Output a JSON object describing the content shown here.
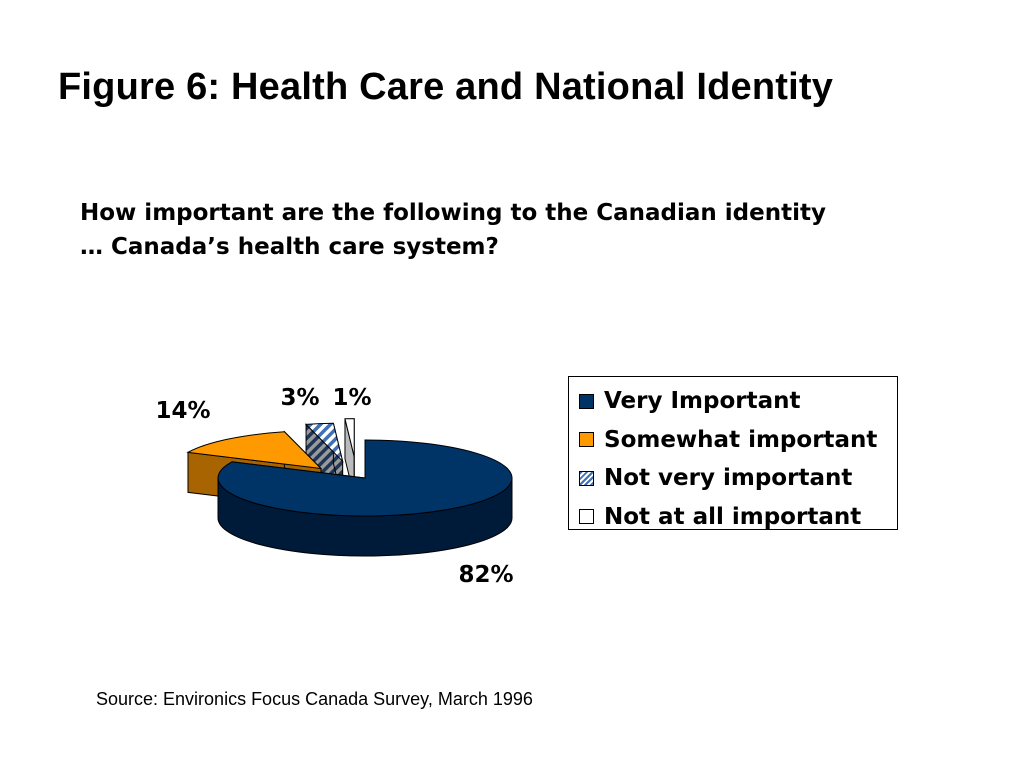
{
  "title": "Figure 6: Health Care and National Identity",
  "question": {
    "line1": "How important are the following to the Canadian identity",
    "line2": "… Canada’s health care system?"
  },
  "source": "Source: Environics Focus Canada Survey, March 1996",
  "chart_data": {
    "type": "pie",
    "style": "3d-exploded",
    "categories": [
      "Very Important",
      "Somewhat important",
      "Not very important",
      "Not at all important"
    ],
    "values": [
      82,
      14,
      3,
      1
    ],
    "data_labels": [
      "82%",
      "14%",
      "3%",
      "1%"
    ],
    "colors": [
      "#003366",
      "#FF9900",
      "#9DB3D6",
      "#FFFFFF"
    ],
    "fills": [
      "solid",
      "solid",
      "hatched",
      "solid"
    ],
    "legend_position": "right"
  }
}
